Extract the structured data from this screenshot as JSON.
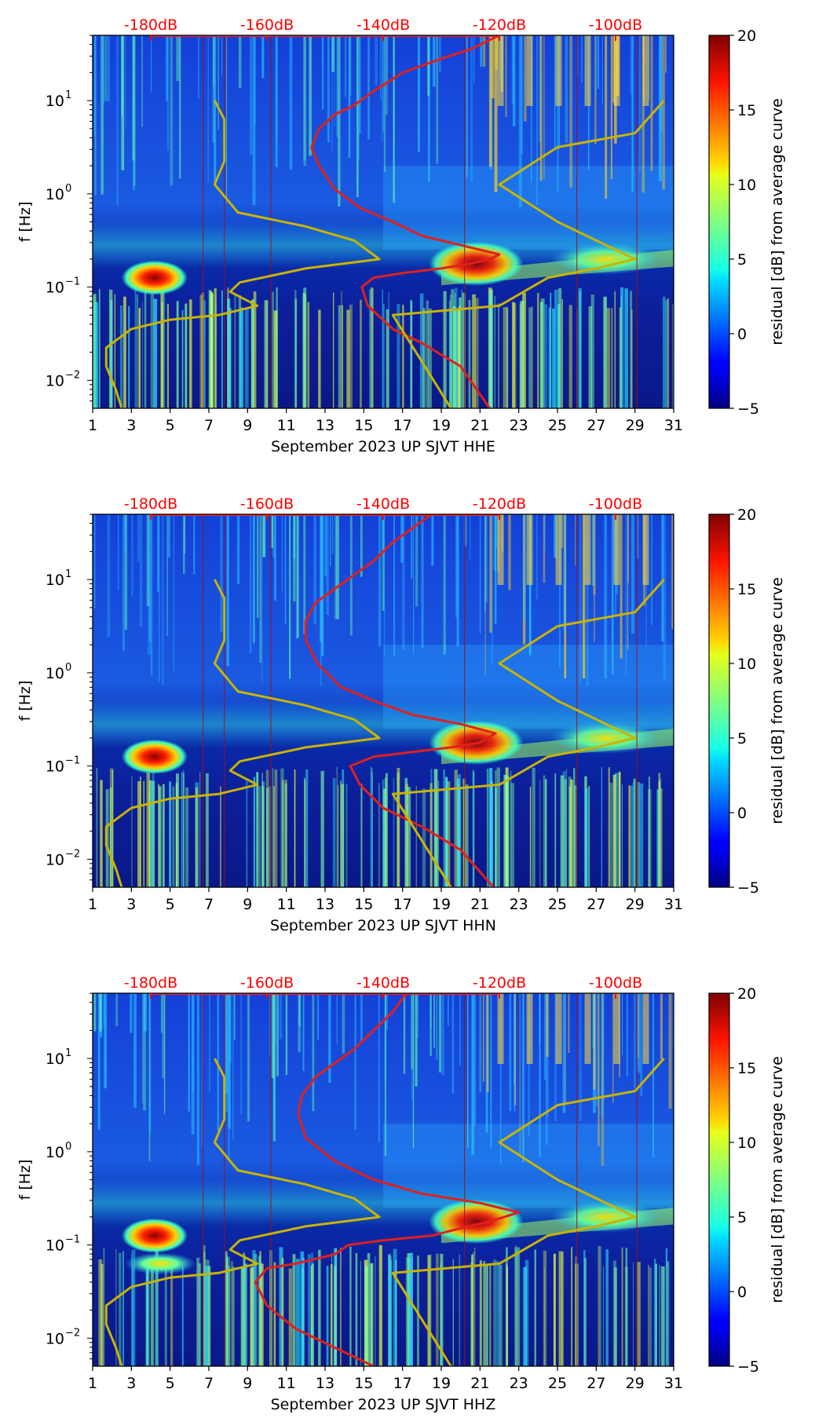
{
  "chart_data": [
    {
      "type": "heatmap",
      "title": "",
      "xlabel": "September 2023 UP SJVT  HHE",
      "ylabel": "f [Hz]",
      "xlim": [
        1,
        31
      ],
      "x_ticks": [
        "1",
        "3",
        "5",
        "7",
        "9",
        "11",
        "13",
        "15",
        "17",
        "19",
        "21",
        "23",
        "25",
        "27",
        "29",
        "31"
      ],
      "ylim_log10": [
        -2.3,
        1.7
      ],
      "y_ticks": [
        {
          "exp": -2,
          "label": "10"
        },
        {
          "exp": -1,
          "label": "10"
        },
        {
          "exp": 0,
          "label": "10"
        },
        {
          "exp": 1,
          "label": "10"
        }
      ],
      "y_tick_exponents": [
        "−2",
        "−1",
        "0",
        "1"
      ],
      "top_axis": {
        "labels": [
          "-180dB",
          "-160dB",
          "-140dB",
          "-120dB",
          "-100dB"
        ],
        "color": "#ff0000",
        "positions_day": [
          4,
          10,
          16,
          22,
          28
        ]
      },
      "colorbar": {
        "label": "residual [dB] from average curve",
        "min": -5,
        "max": 20,
        "ticks": [
          "20",
          "15",
          "10",
          "5",
          "0",
          "−5"
        ]
      },
      "series": [
        {
          "name": "red median PSD curve (freq vs day)",
          "color": "#e0201c",
          "points": [
            [
              21.5,
              -2.3
            ],
            [
              20,
              -1.85
            ],
            [
              18,
              -1.6
            ],
            [
              16.5,
              -1.45
            ],
            [
              15.2,
              -1.2
            ],
            [
              14.9,
              -1.0
            ],
            [
              15.5,
              -0.9
            ],
            [
              17,
              -0.85
            ],
            [
              19,
              -0.8
            ],
            [
              20.5,
              -0.75
            ],
            [
              21.5,
              -0.7
            ],
            [
              22,
              -0.65
            ],
            [
              20,
              -0.55
            ],
            [
              18,
              -0.45
            ],
            [
              16.5,
              -0.3
            ],
            [
              14.8,
              -0.15
            ],
            [
              13.5,
              0.05
            ],
            [
              12.7,
              0.3
            ],
            [
              12.3,
              0.5
            ],
            [
              12.7,
              0.7
            ],
            [
              13.5,
              0.85
            ],
            [
              14.5,
              0.95
            ],
            [
              15.5,
              1.1
            ],
            [
              17,
              1.3
            ],
            [
              19,
              1.45
            ],
            [
              20.5,
              1.55
            ],
            [
              22,
              1.7
            ]
          ]
        },
        {
          "name": "yellow low noise model",
          "color": "#c8b400",
          "points": [
            [
              2.5,
              -2.3
            ],
            [
              2.2,
              -2.1
            ],
            [
              1.7,
              -1.85
            ],
            [
              1.7,
              -1.65
            ],
            [
              3,
              -1.45
            ],
            [
              5,
              -1.35
            ],
            [
              7.5,
              -1.3
            ],
            [
              9.5,
              -1.2
            ],
            [
              8.1,
              -1.05
            ],
            [
              8.6,
              -0.95
            ],
            [
              12,
              -0.8
            ],
            [
              15.8,
              -0.7
            ],
            [
              14.5,
              -0.5
            ],
            [
              12,
              -0.35
            ],
            [
              8.5,
              -0.2
            ],
            [
              7.3,
              0.1
            ],
            [
              7.8,
              0.35
            ],
            [
              7.8,
              0.6
            ],
            [
              7.8,
              0.8
            ],
            [
              7.3,
              1.0
            ]
          ]
        },
        {
          "name": "yellow high noise model",
          "color": "#c8b400",
          "points": [
            [
              19.5,
              -2.3
            ],
            [
              18,
              -1.8
            ],
            [
              16.5,
              -1.3
            ],
            [
              22,
              -1.2
            ],
            [
              24.5,
              -0.9
            ],
            [
              27,
              -0.8
            ],
            [
              29,
              -0.7
            ],
            [
              25,
              -0.3
            ],
            [
              22,
              0.1
            ],
            [
              25,
              0.5
            ],
            [
              29,
              0.65
            ],
            [
              30.5,
              1.0
            ]
          ]
        }
      ]
    },
    {
      "type": "heatmap",
      "title": "",
      "xlabel": "September 2023 UP SJVT  HHN",
      "ylabel": "f [Hz]",
      "xlim": [
        1,
        31
      ],
      "x_ticks": [
        "1",
        "3",
        "5",
        "7",
        "9",
        "11",
        "13",
        "15",
        "17",
        "19",
        "21",
        "23",
        "25",
        "27",
        "29",
        "31"
      ],
      "ylim_log10": [
        -2.3,
        1.7
      ],
      "y_ticks": [
        {
          "exp": -2,
          "label": "10"
        },
        {
          "exp": -1,
          "label": "10"
        },
        {
          "exp": 0,
          "label": "10"
        },
        {
          "exp": 1,
          "label": "10"
        }
      ],
      "y_tick_exponents": [
        "−2",
        "−1",
        "0",
        "1"
      ],
      "top_axis": {
        "labels": [
          "-180dB",
          "-160dB",
          "-140dB",
          "-120dB",
          "-100dB"
        ],
        "color": "#ff0000",
        "positions_day": [
          4,
          10,
          16,
          22,
          28
        ]
      },
      "colorbar": {
        "label": "residual [dB] from average curve",
        "min": -5,
        "max": 20,
        "ticks": [
          "20",
          "15",
          "10",
          "5",
          "0",
          "−5"
        ]
      },
      "series": [
        {
          "name": "red median PSD curve (freq vs day)",
          "color": "#e0201c",
          "points": [
            [
              21.7,
              -2.3
            ],
            [
              20,
              -1.9
            ],
            [
              18,
              -1.65
            ],
            [
              16,
              -1.45
            ],
            [
              14.8,
              -1.2
            ],
            [
              14.3,
              -1.0
            ],
            [
              15.5,
              -0.9
            ],
            [
              17.5,
              -0.85
            ],
            [
              19.5,
              -0.8
            ],
            [
              21,
              -0.75
            ],
            [
              21.8,
              -0.65
            ],
            [
              20,
              -0.55
            ],
            [
              17.5,
              -0.45
            ],
            [
              15.5,
              -0.3
            ],
            [
              13.8,
              -0.15
            ],
            [
              12.6,
              0.1
            ],
            [
              12.0,
              0.35
            ],
            [
              12.0,
              0.55
            ],
            [
              12.5,
              0.75
            ],
            [
              13.5,
              0.9
            ],
            [
              14.5,
              1.05
            ],
            [
              15.5,
              1.2
            ],
            [
              16.5,
              1.4
            ],
            [
              17.5,
              1.55
            ],
            [
              18.5,
              1.7
            ]
          ]
        },
        {
          "name": "yellow low noise model",
          "color": "#c8b400",
          "points": [
            [
              2.5,
              -2.3
            ],
            [
              2.2,
              -2.1
            ],
            [
              1.7,
              -1.85
            ],
            [
              1.7,
              -1.65
            ],
            [
              3,
              -1.45
            ],
            [
              5,
              -1.35
            ],
            [
              7.5,
              -1.3
            ],
            [
              9.5,
              -1.2
            ],
            [
              8.1,
              -1.05
            ],
            [
              8.6,
              -0.95
            ],
            [
              12,
              -0.8
            ],
            [
              15.8,
              -0.7
            ],
            [
              14.5,
              -0.5
            ],
            [
              12,
              -0.35
            ],
            [
              8.5,
              -0.2
            ],
            [
              7.3,
              0.1
            ],
            [
              7.8,
              0.35
            ],
            [
              7.8,
              0.6
            ],
            [
              7.8,
              0.8
            ],
            [
              7.3,
              1.0
            ]
          ]
        },
        {
          "name": "yellow high noise model",
          "color": "#c8b400",
          "points": [
            [
              19.5,
              -2.3
            ],
            [
              18,
              -1.8
            ],
            [
              16.5,
              -1.3
            ],
            [
              22,
              -1.2
            ],
            [
              24.5,
              -0.9
            ],
            [
              27,
              -0.8
            ],
            [
              29,
              -0.7
            ],
            [
              25,
              -0.3
            ],
            [
              22,
              0.1
            ],
            [
              25,
              0.5
            ],
            [
              29,
              0.65
            ],
            [
              30.5,
              1.0
            ]
          ]
        }
      ]
    },
    {
      "type": "heatmap",
      "title": "",
      "xlabel": "September 2023 UP SJVT  HHZ",
      "ylabel": "f [Hz]",
      "xlim": [
        1,
        31
      ],
      "x_ticks": [
        "1",
        "3",
        "5",
        "7",
        "9",
        "11",
        "13",
        "15",
        "17",
        "19",
        "21",
        "23",
        "25",
        "27",
        "29",
        "31"
      ],
      "ylim_log10": [
        -2.3,
        1.7
      ],
      "y_ticks": [
        {
          "exp": -2,
          "label": "10"
        },
        {
          "exp": -1,
          "label": "10"
        },
        {
          "exp": 0,
          "label": "10"
        },
        {
          "exp": 1,
          "label": "10"
        }
      ],
      "y_tick_exponents": [
        "−2",
        "−1",
        "0",
        "1"
      ],
      "top_axis": {
        "labels": [
          "-180dB",
          "-160dB",
          "-140dB",
          "-120dB",
          "-100dB"
        ],
        "color": "#ff0000",
        "positions_day": [
          4,
          10,
          16,
          22,
          28
        ]
      },
      "colorbar": {
        "label": "residual [dB] from average curve",
        "min": -5,
        "max": 20,
        "ticks": [
          "20",
          "15",
          "10",
          "5",
          "0",
          "−5"
        ]
      },
      "series": [
        {
          "name": "red median PSD curve (freq vs day)",
          "color": "#e0201c",
          "points": [
            [
              15.5,
              -2.3
            ],
            [
              13.5,
              -2.1
            ],
            [
              11.5,
              -1.9
            ],
            [
              10,
              -1.65
            ],
            [
              9.4,
              -1.4
            ],
            [
              10,
              -1.25
            ],
            [
              11.5,
              -1.2
            ],
            [
              13.5,
              -1.1
            ],
            [
              14.2,
              -1.0
            ],
            [
              16,
              -0.95
            ],
            [
              18.5,
              -0.9
            ],
            [
              20,
              -0.82
            ],
            [
              21.5,
              -0.75
            ],
            [
              23,
              -0.65
            ],
            [
              21,
              -0.55
            ],
            [
              18,
              -0.45
            ],
            [
              15.5,
              -0.3
            ],
            [
              13.5,
              -0.1
            ],
            [
              12.0,
              0.15
            ],
            [
              11.6,
              0.4
            ],
            [
              11.8,
              0.6
            ],
            [
              12.5,
              0.8
            ],
            [
              13.5,
              0.95
            ],
            [
              14.5,
              1.1
            ],
            [
              15.5,
              1.3
            ],
            [
              16.5,
              1.5
            ],
            [
              17.2,
              1.7
            ]
          ]
        },
        {
          "name": "yellow low noise model",
          "color": "#c8b400",
          "points": [
            [
              2.5,
              -2.3
            ],
            [
              2.2,
              -2.1
            ],
            [
              1.7,
              -1.85
            ],
            [
              1.7,
              -1.65
            ],
            [
              3,
              -1.45
            ],
            [
              5,
              -1.35
            ],
            [
              7.5,
              -1.3
            ],
            [
              9.5,
              -1.2
            ],
            [
              8.1,
              -1.05
            ],
            [
              8.6,
              -0.95
            ],
            [
              12,
              -0.8
            ],
            [
              15.8,
              -0.7
            ],
            [
              14.5,
              -0.5
            ],
            [
              12,
              -0.35
            ],
            [
              8.5,
              -0.2
            ],
            [
              7.3,
              0.1
            ],
            [
              7.8,
              0.35
            ],
            [
              7.8,
              0.6
            ],
            [
              7.8,
              0.8
            ],
            [
              7.3,
              1.0
            ]
          ]
        },
        {
          "name": "yellow high noise model",
          "color": "#c8b400",
          "points": [
            [
              19.5,
              -2.3
            ],
            [
              18,
              -1.8
            ],
            [
              16.5,
              -1.3
            ],
            [
              22,
              -1.2
            ],
            [
              24.5,
              -0.9
            ],
            [
              27,
              -0.8
            ],
            [
              29,
              -0.7
            ],
            [
              25,
              -0.3
            ],
            [
              22,
              0.1
            ],
            [
              25,
              0.5
            ],
            [
              29,
              0.65
            ],
            [
              30.5,
              1.0
            ]
          ]
        }
      ]
    }
  ]
}
